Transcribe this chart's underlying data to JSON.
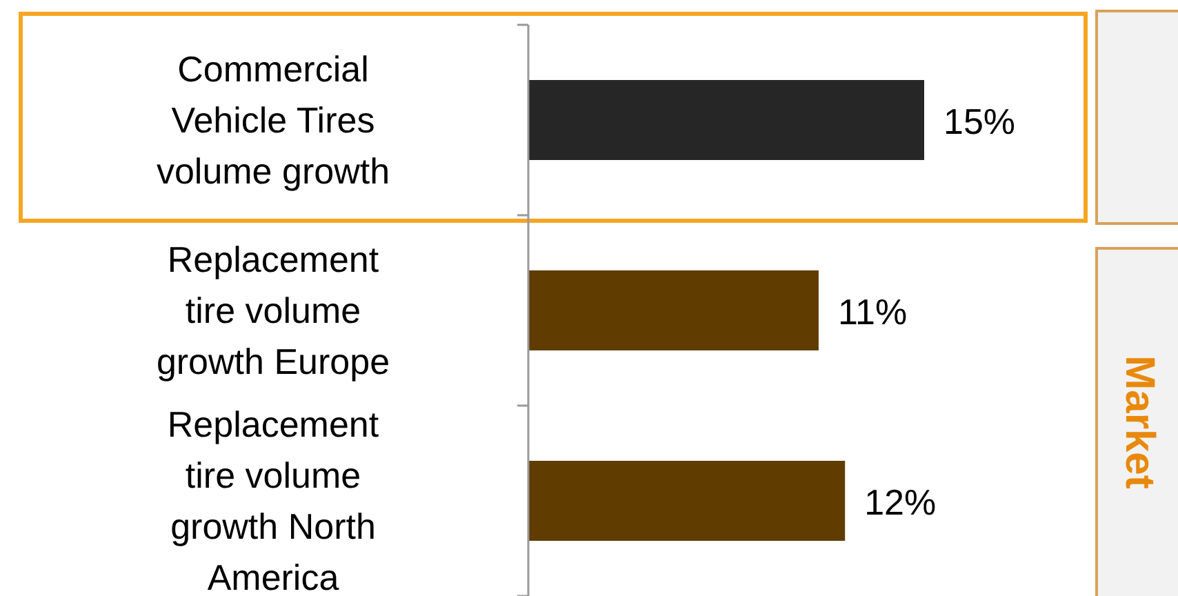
{
  "chart_data": {
    "type": "bar",
    "orientation": "horizontal",
    "categories": [
      "Commercial Vehicle Tires volume growth",
      "Replacement tire volume growth Europe",
      "Replacement tire volume growth North America"
    ],
    "values": [
      15,
      11,
      12
    ],
    "colors": [
      "#262626",
      "#603c00",
      "#603c00"
    ],
    "value_labels": [
      "15%",
      "11%",
      "12%"
    ],
    "annotations": [
      "Market"
    ]
  }
}
